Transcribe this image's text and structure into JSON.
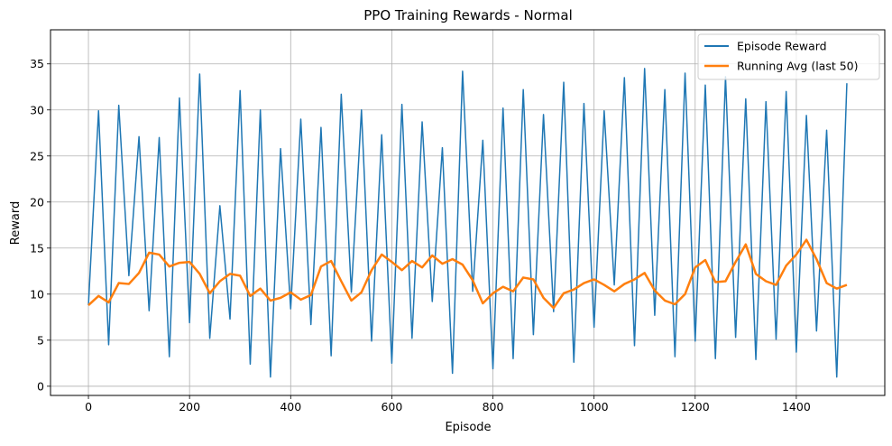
{
  "chart_data": {
    "type": "line",
    "title": "PPO Training Rewards - Normal",
    "xlabel": "Episode",
    "ylabel": "Reward",
    "xlim": [
      -75,
      1575
    ],
    "ylim": [
      -1,
      38.7
    ],
    "x_ticks": [
      0,
      200,
      400,
      600,
      800,
      1000,
      1200,
      1400
    ],
    "y_ticks": [
      0,
      5,
      10,
      15,
      20,
      25,
      30,
      35
    ],
    "grid": true,
    "legend_position": "upper right",
    "legend": [
      "Episode Reward",
      "Running Avg (last 50)"
    ],
    "colors": {
      "episode": "#1f77b4",
      "avg": "#ff7f0e",
      "grid": "#b0b0b0"
    },
    "episodes": 1500,
    "series": [
      {
        "name": "Episode Reward",
        "x_start": 0,
        "x_step": 20,
        "values": [
          8.8,
          29.9,
          4.5,
          30.5,
          12.0,
          27.1,
          8.2,
          27.0,
          3.2,
          31.3,
          6.9,
          33.9,
          5.2,
          19.6,
          7.3,
          32.1,
          2.4,
          30.0,
          1.0,
          25.8,
          8.4,
          29.0,
          6.7,
          28.1,
          3.3,
          31.7,
          10.2,
          30.0,
          4.9,
          27.3,
          2.5,
          30.6,
          5.2,
          28.7,
          9.2,
          25.9,
          1.4,
          34.2,
          10.3,
          26.7,
          1.9,
          30.2,
          3.0,
          32.2,
          5.6,
          29.5,
          8.1,
          33.0,
          2.6,
          30.7,
          6.4,
          29.9,
          11.0,
          33.5,
          4.4,
          34.5,
          7.7,
          32.2,
          3.2,
          34.0,
          4.9,
          32.7,
          3.0,
          33.6,
          5.3,
          31.2,
          2.9,
          30.9,
          5.1,
          32.0,
          3.7,
          29.4,
          6.0,
          27.8,
          1.0,
          32.9
        ]
      },
      {
        "name": "Running Avg (last 50)",
        "x_start": 0,
        "x_step": 20,
        "values": [
          8.8,
          9.8,
          9.1,
          11.2,
          11.1,
          12.3,
          14.5,
          14.3,
          13.0,
          13.4,
          13.5,
          12.2,
          10.1,
          11.4,
          12.2,
          12.0,
          9.8,
          10.6,
          9.3,
          9.6,
          10.2,
          9.4,
          9.9,
          13.0,
          13.6,
          11.4,
          9.3,
          10.2,
          12.6,
          14.3,
          13.5,
          12.6,
          13.6,
          12.9,
          14.2,
          13.3,
          13.8,
          13.2,
          11.5,
          9.0,
          10.1,
          10.8,
          10.3,
          11.8,
          11.6,
          9.6,
          8.5,
          10.1,
          10.5,
          11.2,
          11.6,
          11.0,
          10.3,
          11.1,
          11.6,
          12.3,
          10.4,
          9.3,
          8.9,
          10.0,
          12.9,
          13.7,
          11.3,
          11.4,
          13.5,
          15.4,
          12.2,
          11.4,
          11.0,
          13.1,
          14.3,
          15.9,
          13.8,
          11.2,
          10.6,
          11.0
        ]
      }
    ]
  }
}
